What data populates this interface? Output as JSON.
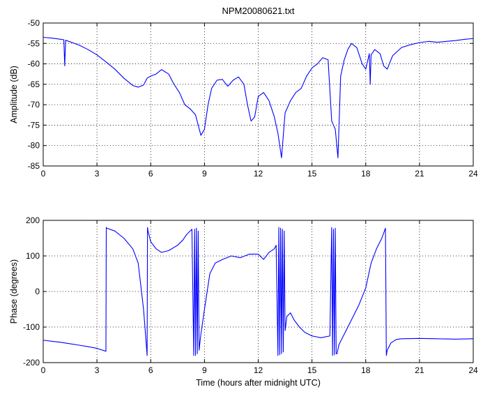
{
  "chart_data": [
    {
      "type": "line",
      "title": "NPM20080621.txt",
      "xlabel": "",
      "ylabel": "Amplitude (dB)",
      "xlim": [
        0,
        24
      ],
      "ylim": [
        -85,
        -50
      ],
      "xticks": [
        0,
        3,
        6,
        9,
        12,
        15,
        18,
        21,
        24
      ],
      "yticks": [
        -85,
        -80,
        -75,
        -70,
        -65,
        -60,
        -55,
        -50
      ],
      "grid": true,
      "line_color": "#0000ff",
      "series": [
        {
          "x": [
            0,
            0.5,
            1.0,
            1.15,
            1.2,
            1.25,
            1.3,
            1.5,
            2.0,
            2.5,
            3.0,
            3.5,
            4.0,
            4.5,
            5.0,
            5.3,
            5.6,
            5.8,
            6.0,
            6.3,
            6.6,
            7.0,
            7.3,
            7.6,
            7.9,
            8.2,
            8.5,
            8.8,
            9.0,
            9.2,
            9.4,
            9.7,
            10.0,
            10.3,
            10.6,
            10.9,
            11.2,
            11.4,
            11.6,
            11.8,
            12.0,
            12.3,
            12.6,
            12.9,
            13.1,
            13.3,
            13.5,
            13.8,
            14.1,
            14.4,
            14.7,
            15.0,
            15.3,
            15.6,
            15.9,
            16.1,
            16.3,
            16.45,
            16.6,
            16.8,
            17.0,
            17.2,
            17.5,
            17.8,
            18.0,
            18.2,
            18.25,
            18.3,
            18.5,
            18.8,
            19.0,
            19.2,
            19.5,
            20.0,
            20.5,
            21.0,
            21.5,
            22.0,
            22.5,
            23.0,
            23.5,
            24.0
          ],
          "y": [
            -53.5,
            -53.7,
            -54.0,
            -54.1,
            -60.5,
            -54.2,
            -54.3,
            -54.6,
            -55.4,
            -56.5,
            -57.8,
            -59.5,
            -61.3,
            -63.5,
            -65.3,
            -65.7,
            -65.2,
            -63.5,
            -63.0,
            -62.5,
            -61.4,
            -62.5,
            -65.0,
            -67.0,
            -70.0,
            -71.0,
            -72.5,
            -77.5,
            -76.0,
            -70.0,
            -66.0,
            -64.0,
            -63.8,
            -65.5,
            -64.0,
            -63.2,
            -65.0,
            -70.0,
            -74.0,
            -73.0,
            -68.0,
            -67.0,
            -69.0,
            -73.0,
            -77.0,
            -83.0,
            -72.0,
            -69.0,
            -67.0,
            -66.0,
            -63.0,
            -61.0,
            -60.0,
            -58.5,
            -59.0,
            -74.0,
            -76.0,
            -83.0,
            -63.0,
            -59.0,
            -56.5,
            -55.0,
            -56.0,
            -60.0,
            -61.3,
            -57.5,
            -65.0,
            -57.8,
            -56.5,
            -57.5,
            -60.5,
            -61.3,
            -58.0,
            -56.0,
            -55.3,
            -54.8,
            -54.5,
            -54.7,
            -54.5,
            -54.3,
            -54.0,
            -53.8
          ]
        }
      ]
    },
    {
      "type": "line",
      "title": "",
      "xlabel": "Time (hours after midnight UTC)",
      "ylabel": "Phase (degrees)",
      "xlim": [
        0,
        24
      ],
      "ylim": [
        -200,
        200
      ],
      "xticks": [
        0,
        3,
        6,
        9,
        12,
        15,
        18,
        21,
        24
      ],
      "yticks": [
        -200,
        -100,
        0,
        100,
        200
      ],
      "grid": true,
      "line_color": "#0000ff",
      "series": [
        {
          "x": [
            0,
            0.5,
            1.0,
            1.5,
            2.0,
            2.5,
            3.0,
            3.5,
            3.52,
            3.55,
            4.0,
            4.5,
            5.0,
            5.3,
            5.6,
            5.8,
            5.82,
            5.85,
            6.0,
            6.3,
            6.6,
            7.0,
            7.5,
            7.8,
            8.0,
            8.3,
            8.4,
            8.45,
            8.5,
            8.55,
            8.6,
            8.65,
            8.7,
            8.8,
            9.0,
            9.3,
            9.6,
            10.0,
            10.5,
            11.0,
            11.5,
            12.0,
            12.3,
            12.6,
            12.9,
            13.0,
            13.1,
            13.15,
            13.2,
            13.25,
            13.3,
            13.35,
            13.4,
            13.45,
            13.5,
            13.6,
            13.8,
            14.0,
            14.3,
            14.6,
            15.0,
            15.5,
            16.0,
            16.1,
            16.15,
            16.2,
            16.25,
            16.3,
            16.35,
            16.4,
            16.5,
            16.6,
            16.8,
            17.0,
            17.3,
            17.6,
            18.0,
            18.3,
            18.6,
            18.9,
            19.1,
            19.15,
            19.2,
            19.4,
            19.7,
            20.0,
            21.0,
            22.0,
            23.0,
            24.0
          ],
          "y": [
            -137,
            -140,
            -143,
            -147,
            -151,
            -155,
            -160,
            -168,
            180,
            178,
            170,
            150,
            120,
            80,
            -50,
            -180,
            180,
            170,
            140,
            120,
            110,
            115,
            130,
            145,
            160,
            175,
            -180,
            175,
            -180,
            178,
            -175,
            170,
            -165,
            -120,
            -50,
            50,
            80,
            90,
            100,
            95,
            105,
            105,
            90,
            110,
            120,
            130,
            -180,
            180,
            -178,
            178,
            -175,
            175,
            -170,
            170,
            -110,
            -70,
            -60,
            -80,
            -100,
            -115,
            -125,
            -130,
            -125,
            180,
            -180,
            175,
            -178,
            178,
            -175,
            -175,
            -150,
            -140,
            -120,
            -100,
            -70,
            -40,
            10,
            80,
            120,
            150,
            178,
            -180,
            -165,
            -145,
            -135,
            -133,
            -132,
            -133,
            -134,
            -133
          ]
        }
      ]
    }
  ]
}
